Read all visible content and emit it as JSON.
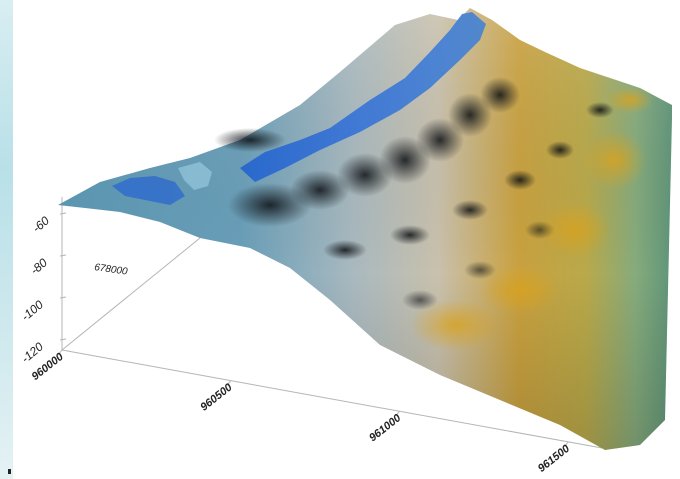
{
  "chart_data": {
    "type": "surface",
    "title": "",
    "xlabel": "",
    "ylabel": "",
    "zlabel": "",
    "x_ticks": [
      "960000",
      "960500",
      "961000",
      "961500"
    ],
    "y_ticks": [
      "678000"
    ],
    "z_ticks": [
      "-60",
      "-80",
      "-100",
      "-120"
    ],
    "xlim": [
      960000,
      961600
    ],
    "zlim": [
      -120,
      -55
    ],
    "colormap": [
      "#3a7dd6",
      "#5b93b8",
      "#9fb7c2",
      "#c8c3b4",
      "#caa24a",
      "#c7a233",
      "#8fb07a",
      "#5e9a78"
    ],
    "colors": {
      "axis": "#b5b5b5",
      "text": "#222222"
    }
  }
}
